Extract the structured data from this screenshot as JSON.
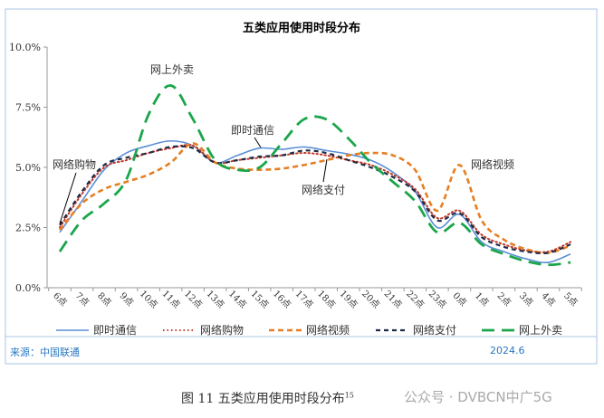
{
  "chart_data": {
    "type": "line",
    "title": "五类应用使用时段分布",
    "xlabel": "",
    "ylabel": "",
    "ylim": [
      0,
      10
    ],
    "yticks": [
      "0.0%",
      "2.5%",
      "5.0%",
      "7.5%",
      "10.0%"
    ],
    "grid": false,
    "legend": "bottom",
    "categories": [
      "6点",
      "7点",
      "8点",
      "9点",
      "10点",
      "11点",
      "12点",
      "13点",
      "14点",
      "15点",
      "16点",
      "17点",
      "18点",
      "19点",
      "20点",
      "21点",
      "22点",
      "23点",
      "0点",
      "1点",
      "2点",
      "3点",
      "4点",
      "5点"
    ],
    "series": [
      {
        "name": "即时通信",
        "color": "#5b8fd6",
        "style": "solid",
        "values": [
          2.3,
          3.6,
          4.9,
          5.6,
          5.9,
          6.1,
          5.9,
          5.2,
          5.5,
          5.8,
          5.75,
          5.85,
          5.7,
          5.55,
          5.3,
          4.8,
          4.0,
          2.5,
          3.05,
          1.9,
          1.5,
          1.2,
          1.05,
          1.4
        ]
      },
      {
        "name": "网络购物",
        "color": "#c0392b",
        "style": "dotted",
        "values": [
          2.5,
          3.9,
          5.0,
          5.3,
          5.6,
          5.8,
          5.9,
          5.2,
          5.3,
          5.4,
          5.5,
          5.6,
          5.5,
          5.3,
          5.1,
          4.7,
          4.1,
          2.9,
          3.2,
          2.2,
          1.8,
          1.55,
          1.5,
          1.9
        ]
      },
      {
        "name": "网络视频",
        "color": "#e67e22",
        "style": "dashed",
        "values": [
          2.4,
          3.5,
          4.1,
          4.4,
          4.7,
          5.2,
          6.0,
          5.2,
          4.95,
          4.9,
          4.95,
          5.1,
          5.3,
          5.5,
          5.6,
          5.5,
          4.9,
          3.2,
          5.1,
          2.8,
          2.0,
          1.6,
          1.45,
          1.75
        ]
      },
      {
        "name": "网络支付",
        "color": "#1f2a44",
        "style": "dashed-short",
        "values": [
          2.6,
          4.0,
          5.1,
          5.4,
          5.6,
          5.85,
          5.8,
          5.2,
          5.3,
          5.45,
          5.5,
          5.7,
          5.6,
          5.3,
          5.0,
          4.6,
          4.0,
          2.8,
          3.1,
          2.1,
          1.7,
          1.5,
          1.45,
          1.8
        ]
      },
      {
        "name": "网上外卖",
        "color": "#1aa64a",
        "style": "long-dash",
        "values": [
          1.5,
          2.8,
          3.5,
          4.5,
          7.2,
          8.4,
          7.0,
          5.3,
          4.9,
          5.0,
          6.0,
          7.0,
          7.0,
          6.2,
          5.2,
          4.4,
          3.6,
          2.3,
          2.7,
          1.8,
          1.4,
          1.1,
          0.95,
          1.05
        ]
      }
    ],
    "annotations": [
      "网上外卖",
      "即时通信",
      "网络购物",
      "网络支付",
      "网络视频"
    ]
  },
  "footer": {
    "source": "来源：中国联通",
    "date": "2024.6"
  },
  "caption": {
    "text": "图  11    五类应用使用时段分布",
    "sup": "15"
  },
  "watermark": "公众号 · DVBCN中广5G"
}
